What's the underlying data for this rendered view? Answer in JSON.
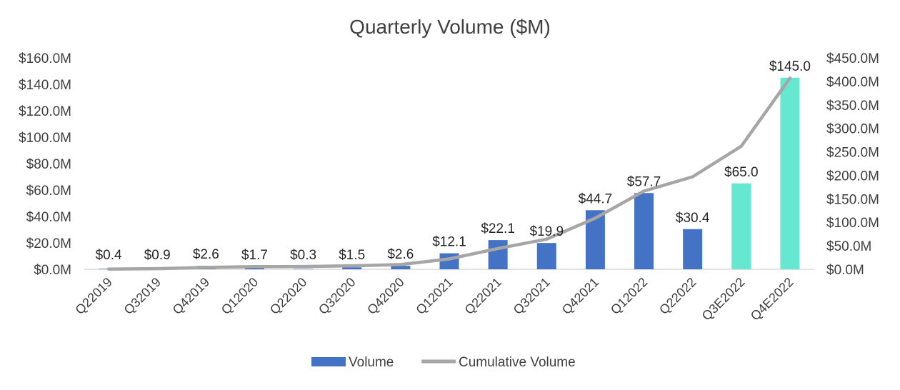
{
  "chart_data": {
    "type": "bar",
    "title": "Quarterly Volume ($M)",
    "categories": [
      "Q22019",
      "Q32019",
      "Q42019",
      "Q12020",
      "Q22020",
      "Q32020",
      "Q42020",
      "Q12021",
      "Q22021",
      "Q32021",
      "Q42021",
      "Q12022",
      "Q22022",
      "Q3E2022",
      "Q4E2022"
    ],
    "series": [
      {
        "name": "Volume",
        "type": "bar",
        "axis": "left",
        "values": [
          0.4,
          0.9,
          2.6,
          1.7,
          0.3,
          1.5,
          2.6,
          12.1,
          22.1,
          19.9,
          44.7,
          57.7,
          30.4,
          65.0,
          145.0
        ],
        "data_labels": [
          "$0.4",
          "$0.9",
          "$2.6",
          "$1.7",
          "$0.3",
          "$1.5",
          "$2.6",
          "$12.1",
          "$22.1",
          "$19.9",
          "$44.7",
          "$57.7",
          "$30.4",
          "$65.0",
          "$145.0"
        ],
        "color": "#4472C4",
        "estimate_color": "#66E8D0",
        "estimate_categories": [
          "Q3E2022",
          "Q4E2022"
        ]
      },
      {
        "name": "Cumulative Volume",
        "type": "line",
        "axis": "right",
        "values": [
          0.4,
          1.3,
          3.9,
          5.6,
          5.9,
          7.4,
          10.0,
          22.1,
          44.2,
          64.1,
          108.8,
          166.5,
          196.9,
          261.9,
          406.9
        ],
        "color": "#A6A6A6"
      }
    ],
    "y_left": {
      "ylim": [
        0,
        160
      ],
      "ticks": [
        0,
        20,
        40,
        60,
        80,
        100,
        120,
        140,
        160
      ],
      "tick_labels": [
        "$0.0M",
        "$20.0M",
        "$40.0M",
        "$60.0M",
        "$80.0M",
        "$100.0M",
        "$120.0M",
        "$140.0M",
        "$160.0M"
      ]
    },
    "y_right": {
      "ylim": [
        0,
        450
      ],
      "ticks": [
        0,
        50,
        100,
        150,
        200,
        250,
        300,
        350,
        400,
        450
      ],
      "tick_labels": [
        "$0.0M",
        "$50.0M",
        "$100.0M",
        "$150.0M",
        "$200.0M",
        "$250.0M",
        "$300.0M",
        "$350.0M",
        "$400.0M",
        "$450.0M"
      ]
    },
    "grid": false,
    "legend": {
      "placement": "bottom",
      "entries": [
        "Volume",
        "Cumulative Volume"
      ]
    }
  }
}
